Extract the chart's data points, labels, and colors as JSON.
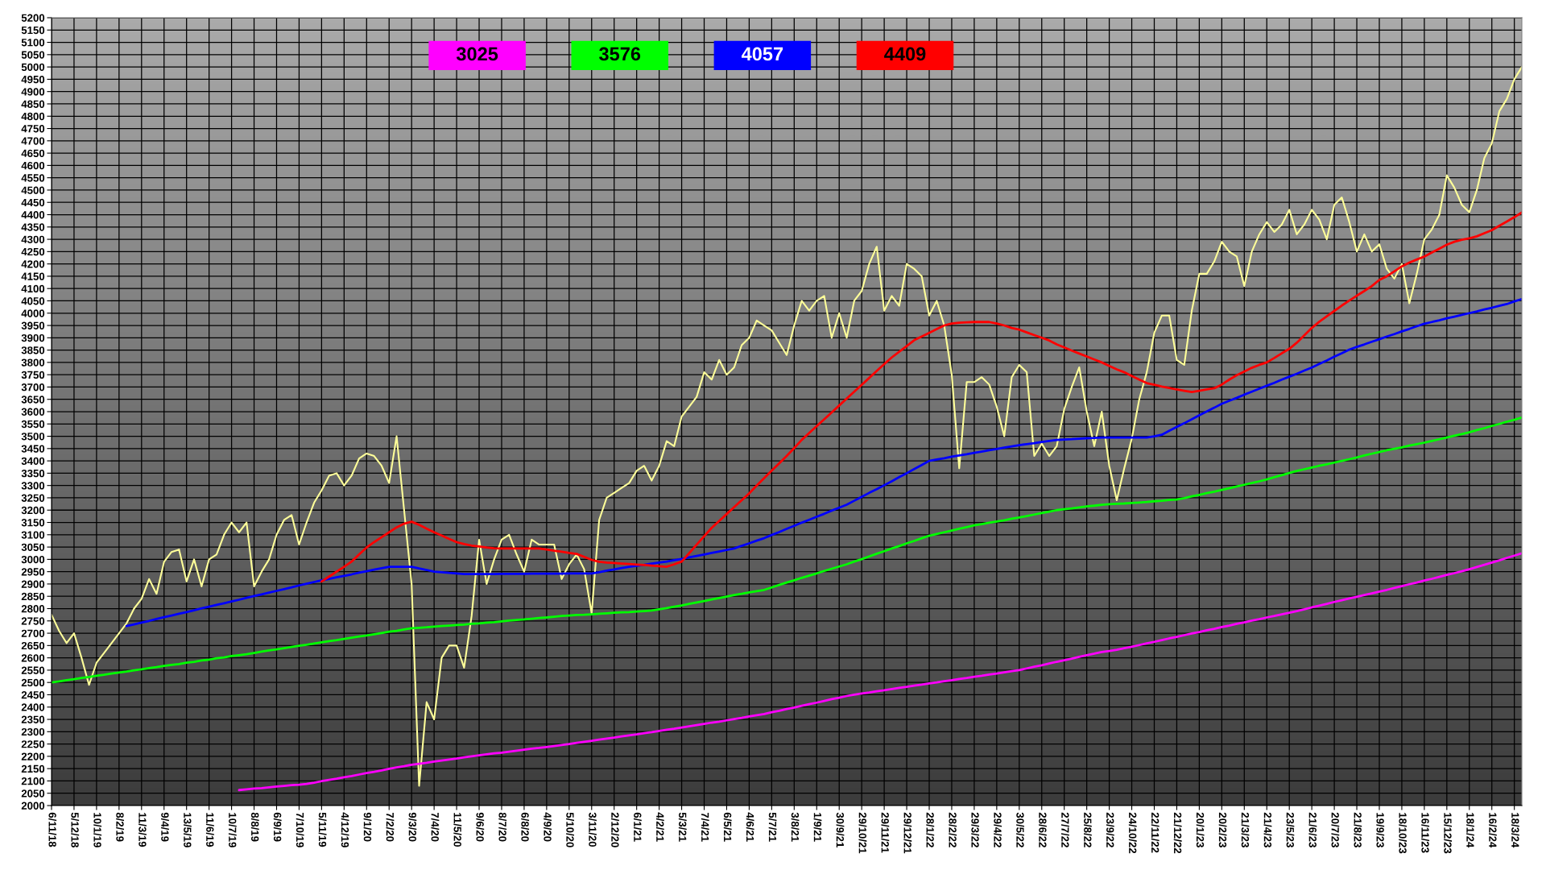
{
  "chart_data": {
    "type": "line",
    "categories": [
      "6/11/18",
      null,
      null,
      "5/12/18",
      null,
      null,
      "10/1/19",
      null,
      null,
      "8/2/19",
      null,
      null,
      "11/3/19",
      null,
      null,
      "9/4/19",
      null,
      null,
      "13/5/19",
      null,
      null,
      "11/6/19",
      null,
      null,
      "10/7/19",
      null,
      null,
      "8/8/19",
      null,
      null,
      "6/9/19",
      null,
      null,
      "7/10/19",
      null,
      null,
      "5/11/19",
      null,
      null,
      "4/12/19",
      null,
      null,
      "9/1/20",
      null,
      null,
      "7/2/20",
      null,
      null,
      "9/3/20",
      null,
      null,
      "7/4/20",
      null,
      null,
      "11/5/20",
      null,
      null,
      "9/6/20",
      null,
      null,
      "8/7/20",
      null,
      null,
      "6/8/20",
      null,
      null,
      "4/9/20",
      null,
      null,
      "5/10/20",
      null,
      null,
      "3/11/20",
      null,
      null,
      "2/12/20",
      null,
      null,
      "6/1/21",
      null,
      null,
      "4/2/21",
      null,
      null,
      "5/3/21",
      null,
      null,
      "7/4/21",
      null,
      null,
      "6/5/21",
      null,
      null,
      "4/6/21",
      null,
      null,
      "5/7/21",
      null,
      null,
      "3/8/21",
      null,
      null,
      "1/9/21",
      null,
      null,
      "30/9/21",
      null,
      null,
      "29/10/21",
      null,
      null,
      "29/11/21",
      null,
      null,
      "29/12/21",
      null,
      null,
      "28/1/22",
      null,
      null,
      "28/2/22",
      null,
      null,
      "29/3/22",
      null,
      null,
      "29/4/22",
      null,
      null,
      "30/5/22",
      null,
      null,
      "28/6/22",
      null,
      null,
      "27/7/22",
      null,
      null,
      "25/8/22",
      null,
      null,
      "23/9/22",
      null,
      null,
      "24/10/22",
      null,
      null,
      "22/11/22",
      null,
      null,
      "21/12/22",
      null,
      null,
      "20/1/23",
      null,
      null,
      "20/2/23",
      null,
      null,
      "21/3/23",
      null,
      null,
      "21/4/23",
      null,
      null,
      "23/5/23",
      null,
      null,
      "21/6/23",
      null,
      null,
      "20/7/23",
      null,
      null,
      "21/8/23",
      null,
      null,
      "19/9/23",
      null,
      null,
      "18/10/23",
      null,
      null,
      "16/11/23",
      null,
      null,
      "15/12/23",
      null,
      null,
      "18/1/24",
      null,
      null,
      "16/2/24",
      null,
      null,
      "18/3/24",
      null
    ],
    "series": [
      {
        "color": "#ffff99",
        "values": [
          2775,
          2710,
          2660,
          2700,
          2600,
          2490,
          2580,
          2620,
          2660,
          2700,
          2740,
          2800,
          2840,
          2920,
          2860,
          2990,
          3030,
          3040,
          2910,
          3000,
          2890,
          3000,
          3020,
          3100,
          3150,
          3110,
          3150,
          2890,
          2950,
          3000,
          3100,
          3160,
          3180,
          3060,
          3150,
          3230,
          3280,
          3340,
          3350,
          3300,
          3340,
          3410,
          3430,
          3420,
          3380,
          3310,
          3500,
          3200,
          2900,
          2080,
          2420,
          2350,
          2600,
          2650,
          2650,
          2560,
          2770,
          3080,
          2900,
          3000,
          3080,
          3100,
          3020,
          2950,
          3080,
          3060,
          3060,
          3060,
          2920,
          2980,
          3020,
          2960,
          2780,
          3160,
          3250,
          3270,
          3290,
          3310,
          3360,
          3380,
          3320,
          3380,
          3480,
          3460,
          3580,
          3620,
          3660,
          3760,
          3730,
          3810,
          3750,
          3780,
          3870,
          3900,
          3970,
          3950,
          3930,
          3880,
          3830,
          3950,
          4050,
          4010,
          4050,
          4070,
          3900,
          4000,
          3900,
          4050,
          4090,
          4200,
          4270,
          4010,
          4070,
          4030,
          4200,
          4180,
          4150,
          3990,
          4050,
          3950,
          3750,
          3370,
          3720,
          3720,
          3740,
          3710,
          3620,
          3500,
          3740,
          3790,
          3760,
          3420,
          3470,
          3420,
          3460,
          3610,
          3700,
          3780,
          3600,
          3460,
          3600,
          3380,
          3240,
          3370,
          3490,
          3650,
          3760,
          3920,
          3990,
          3990,
          3810,
          3790,
          4010,
          4160,
          4160,
          4210,
          4290,
          4250,
          4230,
          4110,
          4250,
          4320,
          4370,
          4330,
          4360,
          4420,
          4320,
          4360,
          4420,
          4380,
          4300,
          4440,
          4470,
          4370,
          4250,
          4320,
          4250,
          4280,
          4180,
          4140,
          4200,
          4040,
          4160,
          4300,
          4340,
          4400,
          4560,
          4510,
          4440,
          4410,
          4500,
          4630,
          4690,
          4820,
          4870,
          4950,
          5000
        ]
      },
      {
        "name": "3025",
        "color": "#ff00ff",
        "values": [
          null,
          null,
          null,
          null,
          null,
          null,
          null,
          null,
          null,
          null,
          null,
          null,
          null,
          null,
          null,
          null,
          null,
          null,
          null,
          null,
          null,
          null,
          null,
          null,
          null,
          2063,
          2066,
          2069,
          2071,
          2074,
          2077,
          2080,
          2083,
          2085,
          2088,
          2093,
          2099,
          2104,
          2109,
          2115,
          2120,
          2126,
          2132,
          2137,
          2143,
          2149,
          2155,
          2160,
          2166,
          2170,
          2174,
          2179,
          2183,
          2187,
          2191,
          2196,
          2200,
          2204,
          2208,
          2212,
          2215,
          2219,
          2223,
          2227,
          2231,
          2234,
          2238,
          2242,
          2246,
          2250,
          2255,
          2259,
          2263,
          2268,
          2272,
          2276,
          2281,
          2285,
          2289,
          2294,
          2298,
          2303,
          2308,
          2312,
          2317,
          2322,
          2327,
          2332,
          2337,
          2341,
          2346,
          2351,
          2356,
          2362,
          2367,
          2372,
          2379,
          2385,
          2392,
          2398,
          2405,
          2412,
          2418,
          2425,
          2432,
          2438,
          2445,
          2450,
          2455,
          2459,
          2464,
          2468,
          2473,
          2478,
          2482,
          2487,
          2491,
          2496,
          2500,
          2505,
          2509,
          2514,
          2518,
          2523,
          2527,
          2532,
          2536,
          2541,
          2546,
          2550,
          2557,
          2564,
          2570,
          2577,
          2584,
          2590,
          2597,
          2604,
          2611,
          2617,
          2624,
          2628,
          2633,
          2639,
          2645,
          2652,
          2659,
          2665,
          2672,
          2679,
          2685,
          2692,
          2699,
          2705,
          2712,
          2718,
          2725,
          2731,
          2738,
          2744,
          2751,
          2757,
          2764,
          2770,
          2777,
          2783,
          2790,
          2797,
          2805,
          2812,
          2819,
          2827,
          2834,
          2841,
          2848,
          2855,
          2862,
          2869,
          2876,
          2884,
          2891,
          2899,
          2906,
          2914,
          2921,
          2929,
          2937,
          2944,
          2952,
          2960,
          2969,
          2978,
          2987,
          2996,
          3006,
          3015,
          3025
        ]
      },
      {
        "name": "3576",
        "color": "#00ff00",
        "values": [
          2500,
          2504,
          2509,
          2513,
          2518,
          2522,
          2527,
          2531,
          2536,
          2540,
          2544,
          2549,
          2553,
          2558,
          2562,
          2567,
          2571,
          2575,
          2580,
          2584,
          2589,
          2593,
          2598,
          2602,
          2607,
          2611,
          2615,
          2620,
          2625,
          2630,
          2634,
          2639,
          2644,
          2649,
          2653,
          2658,
          2663,
          2668,
          2672,
          2677,
          2682,
          2687,
          2691,
          2696,
          2701,
          2706,
          2710,
          2715,
          2720,
          2722,
          2724,
          2727,
          2729,
          2731,
          2733,
          2735,
          2738,
          2740,
          2743,
          2745,
          2748,
          2751,
          2754,
          2756,
          2759,
          2762,
          2764,
          2767,
          2770,
          2772,
          2774,
          2775,
          2777,
          2779,
          2781,
          2783,
          2785,
          2786,
          2788,
          2790,
          2792,
          2797,
          2802,
          2808,
          2813,
          2819,
          2825,
          2831,
          2837,
          2843,
          2849,
          2855,
          2860,
          2866,
          2871,
          2876,
          2886,
          2896,
          2906,
          2915,
          2925,
          2934,
          2943,
          2953,
          2962,
          2971,
          2980,
          2991,
          3001,
          3012,
          3023,
          3033,
          3044,
          3054,
          3065,
          3075,
          3086,
          3096,
          3103,
          3110,
          3117,
          3124,
          3131,
          3138,
          3143,
          3149,
          3154,
          3159,
          3165,
          3170,
          3176,
          3182,
          3188,
          3194,
          3200,
          3204,
          3207,
          3211,
          3215,
          3218,
          3222,
          3224,
          3226,
          3227,
          3229,
          3231,
          3233,
          3236,
          3238,
          3241,
          3243,
          3249,
          3256,
          3262,
          3269,
          3275,
          3282,
          3289,
          3296,
          3303,
          3310,
          3317,
          3325,
          3334,
          3342,
          3351,
          3359,
          3366,
          3373,
          3380,
          3386,
          3393,
          3400,
          3407,
          3414,
          3422,
          3429,
          3436,
          3443,
          3449,
          3455,
          3462,
          3468,
          3474,
          3481,
          3488,
          3495,
          3502,
          3509,
          3516,
          3525,
          3533,
          3542,
          3550,
          3559,
          3567,
          3576
        ]
      },
      {
        "name": "4057",
        "color": "#0000ff",
        "values": [
          null,
          null,
          null,
          null,
          null,
          null,
          null,
          null,
          null,
          null,
          2729,
          2736,
          2743,
          2750,
          2758,
          2765,
          2772,
          2779,
          2786,
          2793,
          2801,
          2808,
          2815,
          2822,
          2829,
          2836,
          2844,
          2851,
          2858,
          2865,
          2872,
          2879,
          2886,
          2894,
          2901,
          2908,
          2915,
          2921,
          2927,
          2933,
          2939,
          2946,
          2952,
          2958,
          2964,
          2970,
          2970,
          2970,
          2970,
          2963,
          2957,
          2950,
          2948,
          2945,
          2943,
          2940,
          2940,
          2940,
          2940,
          2940,
          2941,
          2941,
          2941,
          2941,
          2942,
          2942,
          2942,
          2942,
          2942,
          2943,
          2943,
          2943,
          2943,
          2948,
          2954,
          2959,
          2965,
          2970,
          2974,
          2978,
          2983,
          2987,
          2991,
          2997,
          3002,
          3008,
          3014,
          3020,
          3026,
          3032,
          3038,
          3044,
          3055,
          3065,
          3076,
          3086,
          3099,
          3111,
          3124,
          3136,
          3149,
          3161,
          3173,
          3185,
          3198,
          3210,
          3222,
          3238,
          3254,
          3270,
          3285,
          3301,
          3317,
          3334,
          3350,
          3367,
          3383,
          3400,
          3406,
          3411,
          3417,
          3422,
          3427,
          3433,
          3438,
          3443,
          3448,
          3454,
          3459,
          3464,
          3468,
          3472,
          3477,
          3481,
          3485,
          3487,
          3488,
          3490,
          3492,
          3493,
          3495,
          3495,
          3495,
          3495,
          3495,
          3495,
          3495,
          3500,
          3506,
          3522,
          3538,
          3553,
          3569,
          3585,
          3601,
          3616,
          3632,
          3644,
          3656,
          3669,
          3681,
          3693,
          3705,
          3717,
          3730,
          3742,
          3754,
          3767,
          3779,
          3794,
          3808,
          3823,
          3837,
          3852,
          3863,
          3873,
          3884,
          3894,
          3905,
          3915,
          3926,
          3936,
          3947,
          3957,
          3964,
          3971,
          3979,
          3986,
          3993,
          4000,
          4007,
          4015,
          4022,
          4030,
          4037,
          4048,
          4057
        ]
      },
      {
        "name": "4409",
        "color": "#ff0000",
        "values": [
          null,
          null,
          null,
          null,
          null,
          null,
          null,
          null,
          null,
          null,
          null,
          null,
          null,
          null,
          null,
          null,
          null,
          null,
          null,
          null,
          null,
          null,
          null,
          null,
          null,
          null,
          null,
          null,
          null,
          null,
          null,
          null,
          null,
          null,
          null,
          null,
          2910,
          2930,
          2950,
          2970,
          2991,
          3020,
          3048,
          3070,
          3090,
          3110,
          3130,
          3145,
          3153,
          3140,
          3125,
          3110,
          3097,
          3083,
          3070,
          3062,
          3056,
          3052,
          3048,
          3045,
          3044,
          3044,
          3044,
          3044,
          3044,
          3044,
          3040,
          3035,
          3031,
          3026,
          3022,
          3010,
          2998,
          2990,
          2987,
          2985,
          2983,
          2981,
          2979,
          2977,
          2975,
          2972,
          2970,
          2980,
          2991,
          3025,
          3060,
          3094,
          3128,
          3156,
          3184,
          3212,
          3240,
          3268,
          3300,
          3330,
          3360,
          3390,
          3420,
          3452,
          3485,
          3513,
          3541,
          3569,
          3597,
          3625,
          3653,
          3681,
          3709,
          3737,
          3765,
          3793,
          3820,
          3843,
          3866,
          3890,
          3905,
          3920,
          3935,
          3950,
          3958,
          3961,
          3963,
          3964,
          3964,
          3964,
          3958,
          3950,
          3940,
          3933,
          3922,
          3911,
          3900,
          3889,
          3873,
          3861,
          3848,
          3836,
          3824,
          3812,
          3800,
          3786,
          3772,
          3760,
          3745,
          3730,
          3716,
          3709,
          3702,
          3696,
          3690,
          3685,
          3680,
          3685,
          3690,
          3695,
          3710,
          3730,
          3748,
          3763,
          3778,
          3790,
          3800,
          3818,
          3837,
          3855,
          3880,
          3910,
          3940,
          3965,
          3987,
          4009,
          4031,
          4051,
          4071,
          4090,
          4110,
          4135,
          4150,
          4170,
          4190,
          4205,
          4218,
          4230,
          4246,
          4262,
          4278,
          4290,
          4298,
          4304,
          4312,
          4325,
          4337,
          4355,
          4372,
          4390,
          4409
        ]
      }
    ],
    "ylim": [
      2000,
      5200
    ],
    "yticks": [
      2000,
      2050,
      2100,
      2150,
      2200,
      2250,
      2300,
      2350,
      2400,
      2450,
      2500,
      2550,
      2600,
      2650,
      2700,
      2750,
      2800,
      2850,
      2900,
      2950,
      3000,
      3050,
      3100,
      3150,
      3200,
      3250,
      3300,
      3350,
      3400,
      3450,
      3500,
      3550,
      3600,
      3650,
      3700,
      3750,
      3800,
      3850,
      3900,
      3950,
      4000,
      4050,
      4100,
      4150,
      4200,
      4250,
      4300,
      4350,
      4400,
      4450,
      4500,
      4550,
      4600,
      4650,
      4700,
      4750,
      4800,
      4850,
      4900,
      4950,
      5000,
      5050,
      5100,
      5150,
      5200
    ],
    "grid": true,
    "legend": "top"
  }
}
